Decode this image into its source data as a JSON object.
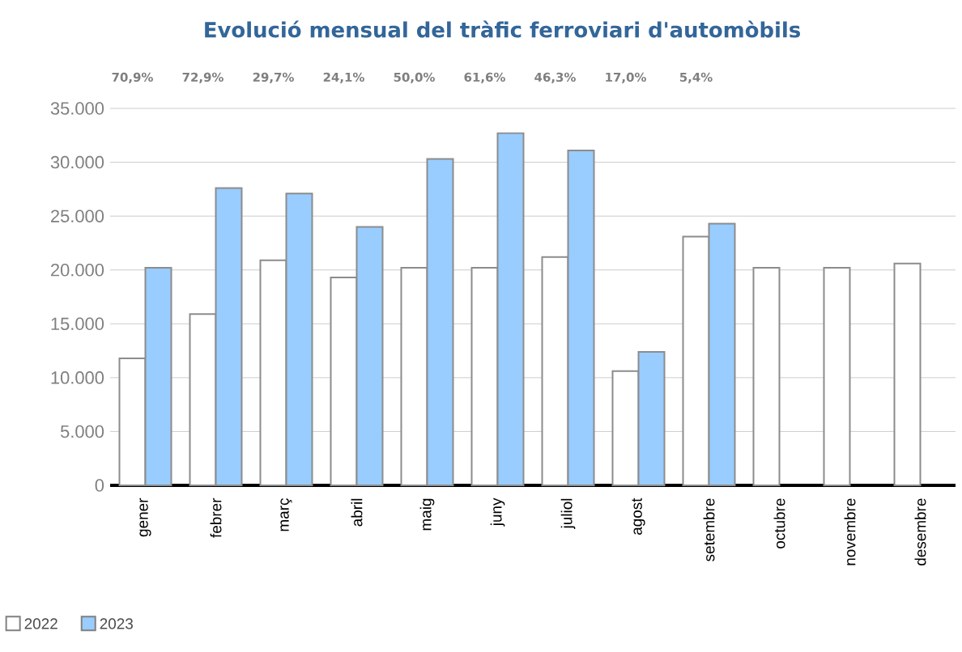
{
  "chart_data": {
    "type": "bar",
    "title": "Evolució mensual del tràfic ferroviari d'automòbils",
    "categories": [
      "gener",
      "febrer",
      "març",
      "abril",
      "maig",
      "juny",
      "juliol",
      "agost",
      "setembre",
      "octubre",
      "novembre",
      "desembre"
    ],
    "series": [
      {
        "name": "2022",
        "color": "#ffffff",
        "values": [
          11800,
          15900,
          20900,
          19300,
          20200,
          20200,
          21200,
          10600,
          23100,
          20200,
          20200,
          20600
        ]
      },
      {
        "name": "2023",
        "color": "#99ccff",
        "values": [
          20200,
          27600,
          27100,
          24000,
          30300,
          32700,
          31100,
          12400,
          24300,
          null,
          null,
          null
        ]
      }
    ],
    "annotations": [
      "70,9%",
      "72,9%",
      "29,7%",
      "24,1%",
      "50,0%",
      "61,6%",
      "46,3%",
      "17,0%",
      "5,4%"
    ],
    "ylim": [
      0,
      35000
    ],
    "yticks": [
      {
        "value": 0,
        "label": "0"
      },
      {
        "value": 5000,
        "label": "5.000"
      },
      {
        "value": 10000,
        "label": "10.000"
      },
      {
        "value": 15000,
        "label": "15.000"
      },
      {
        "value": 20000,
        "label": "20.000"
      },
      {
        "value": 25000,
        "label": "25.000"
      },
      {
        "value": 30000,
        "label": "30.000"
      },
      {
        "value": 35000,
        "label": "35.000"
      }
    ],
    "grid": "y",
    "legend": "bottom left"
  }
}
